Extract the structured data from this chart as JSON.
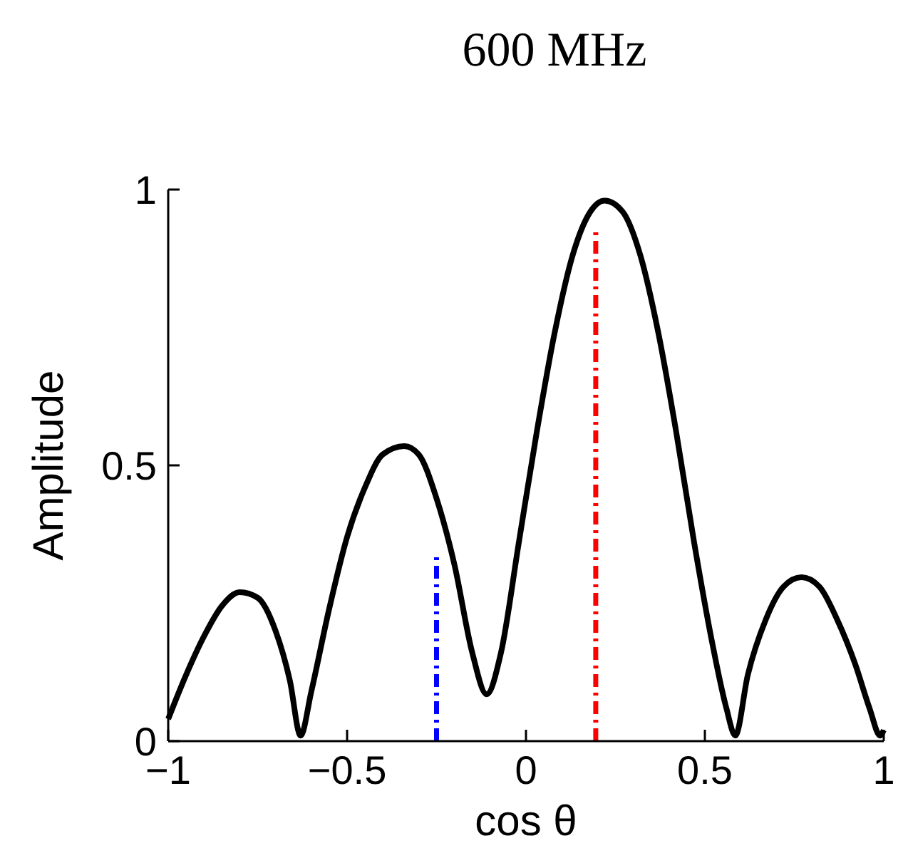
{
  "chart_data": {
    "type": "line",
    "title": "600 MHz",
    "xlabel": "cos θ",
    "ylabel": "Amplitude",
    "xlim": [
      -1,
      1
    ],
    "ylim": [
      0,
      1
    ],
    "xticks": [
      {
        "value": -1,
        "label": "−1"
      },
      {
        "value": -0.5,
        "label": "−0.5"
      },
      0,
      0.5,
      1
    ],
    "yticks": [
      0,
      0.5,
      1
    ],
    "grid": false,
    "series": [
      {
        "color": "#000000",
        "line_style": "solid",
        "x": [
          -1,
          -0.95,
          -0.9,
          -0.85,
          -0.8,
          -0.75,
          -0.7,
          -0.66,
          -0.63,
          -0.6,
          -0.55,
          -0.5,
          -0.45,
          -0.4,
          -0.34,
          -0.3,
          -0.25,
          -0.2,
          -0.15,
          -0.11,
          -0.07,
          -0.02,
          0.03,
          0.08,
          0.13,
          0.18,
          0.22,
          0.27,
          0.32,
          0.37,
          0.42,
          0.47,
          0.52,
          0.56,
          0.585,
          0.62,
          0.67,
          0.72,
          0.77,
          0.82,
          0.87,
          0.92,
          0.96,
          0.99,
          1
        ],
        "values": [
          0.04,
          0.12,
          0.19,
          0.245,
          0.27,
          0.26,
          0.2,
          0.11,
          0.01,
          0.09,
          0.24,
          0.37,
          0.46,
          0.52,
          0.535,
          0.52,
          0.44,
          0.32,
          0.16,
          0.085,
          0.16,
          0.36,
          0.56,
          0.74,
          0.88,
          0.96,
          0.98,
          0.96,
          0.88,
          0.74,
          0.56,
          0.36,
          0.18,
          0.06,
          0.01,
          0.12,
          0.22,
          0.28,
          0.297,
          0.28,
          0.22,
          0.14,
          0.06,
          0.01,
          0.02
        ]
      },
      {
        "color": "#0000ff",
        "line_style": "dashed",
        "x": [
          -0.25,
          -0.25
        ],
        "values": [
          0,
          0.34
        ]
      },
      {
        "color": "#ff0000",
        "line_style": "dashed",
        "x": [
          0.195,
          0.195
        ],
        "values": [
          0,
          0.925
        ]
      }
    ]
  }
}
